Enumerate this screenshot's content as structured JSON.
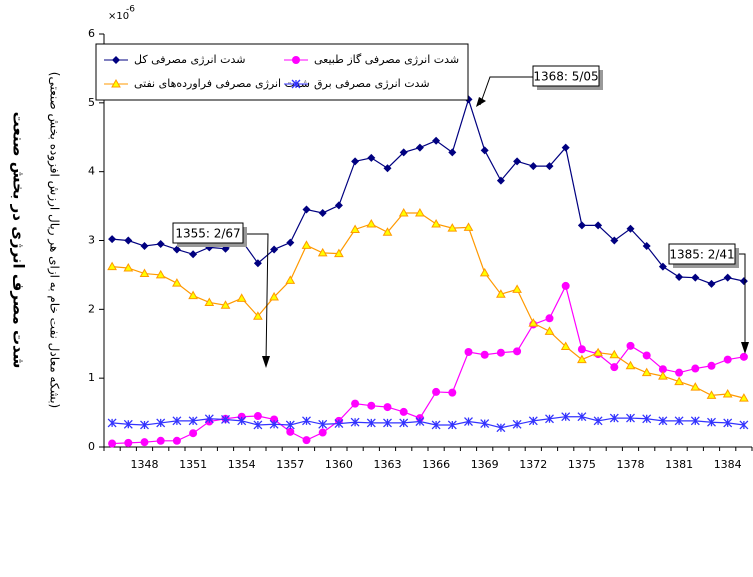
{
  "chart_data": {
    "type": "line",
    "y_label": "شدت مصرف انرژی در بخش صنعت",
    "y_sublabel": "(بشکه معادل نفت خام به ازای هر ریال ارزش افزوده بخش صنعتی)",
    "y_multiplier": {
      "base": "×10",
      "power": "-6"
    },
    "categories": [
      null,
      null,
      "1348",
      null,
      null,
      "1351",
      null,
      null,
      "1354",
      null,
      null,
      "1357",
      null,
      null,
      "1360",
      null,
      null,
      "1363",
      null,
      null,
      "1366",
      null,
      null,
      "1369",
      null,
      null,
      "1372",
      null,
      null,
      "1375",
      null,
      null,
      "1378",
      null,
      null,
      "1381",
      null,
      null,
      "1384",
      null
    ],
    "ylim": [
      0,
      6
    ],
    "yticks": [
      0,
      1,
      2,
      3,
      4,
      5,
      6
    ],
    "legend": "upper left",
    "series": [
      {
        "name": "شدت انرژی مصرفی کل",
        "color": "#000080",
        "marker": "diamond",
        "values": [
          3.02,
          3.0,
          2.92,
          2.95,
          2.87,
          2.8,
          2.9,
          2.88,
          3.0,
          2.67,
          2.87,
          2.97,
          3.45,
          3.4,
          3.51,
          4.15,
          4.2,
          4.05,
          4.28,
          4.35,
          4.45,
          4.28,
          5.05,
          4.31,
          3.87,
          4.15,
          4.08,
          4.08,
          4.35,
          3.22,
          3.22,
          3.0,
          3.17,
          2.92,
          2.62,
          2.47,
          2.46,
          2.37,
          2.46,
          2.41
        ]
      },
      {
        "name": "شدت انرژی مصرفی گاز طبیعی",
        "color": "#ff00ff",
        "marker": "circle",
        "values": [
          0.05,
          0.06,
          0.07,
          0.09,
          0.09,
          0.2,
          0.37,
          0.41,
          0.44,
          0.45,
          0.4,
          0.22,
          0.1,
          0.21,
          0.38,
          0.63,
          0.6,
          0.58,
          0.51,
          0.42,
          0.8,
          0.79,
          1.38,
          1.34,
          1.37,
          1.39,
          1.78,
          1.87,
          2.34,
          1.42,
          1.35,
          1.16,
          1.47,
          1.33,
          1.13,
          1.08,
          1.14,
          1.18,
          1.27,
          1.31
        ]
      },
      {
        "name": "شدت انرژی مصرفی فراورده‌های نفتی",
        "color": "#ff9900",
        "marker": "triangle",
        "values": [
          2.62,
          2.6,
          2.52,
          2.5,
          2.38,
          2.2,
          2.1,
          2.06,
          2.16,
          1.9,
          2.18,
          2.42,
          2.93,
          2.82,
          2.81,
          3.16,
          3.24,
          3.12,
          3.4,
          3.4,
          3.24,
          3.18,
          3.19,
          2.53,
          2.22,
          2.29,
          1.8,
          1.68,
          1.46,
          1.27,
          1.37,
          1.34,
          1.18,
          1.08,
          1.03,
          0.95,
          0.87,
          0.75,
          0.77,
          0.71
        ]
      },
      {
        "name": "شدت انرژی مصرفی برق",
        "color": "#3333ff",
        "marker": "star",
        "values": [
          0.35,
          0.33,
          0.32,
          0.35,
          0.38,
          0.38,
          0.41,
          0.4,
          0.38,
          0.32,
          0.33,
          0.32,
          0.38,
          0.33,
          0.34,
          0.36,
          0.35,
          0.35,
          0.35,
          0.37,
          0.32,
          0.32,
          0.37,
          0.34,
          0.28,
          0.33,
          0.38,
          0.41,
          0.44,
          0.44,
          0.38,
          0.42,
          0.42,
          0.41,
          0.38,
          0.38,
          0.38,
          0.36,
          0.35,
          0.32
        ]
      }
    ],
    "annotations": [
      "1368: 5/05",
      "1355: 2/67",
      "1385: 2/41"
    ]
  }
}
